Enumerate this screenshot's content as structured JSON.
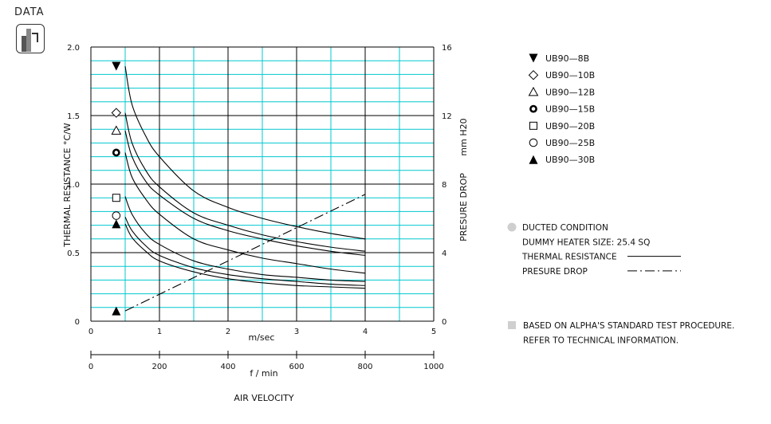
{
  "brand": {
    "label": "DATA",
    "icon": "bar-chart-icon"
  },
  "chart_data": {
    "type": "line",
    "xlabel_top": "m/sec",
    "xlabel_bottom": "f / min",
    "xlabel_main": "AIR VELOCITY",
    "ylabel_left": "THERMAL  RESISTANCE   °C/W",
    "ylabel_right_main": "PRESURE  DROP",
    "ylabel_right_unit": "mm H20",
    "xlim": [
      0,
      5
    ],
    "ylim": [
      0,
      2.0
    ],
    "y2lim": [
      0,
      16
    ],
    "x2lim": [
      0,
      1000
    ],
    "x_ticks": [
      "0",
      "1",
      "2",
      "3",
      "4",
      "5"
    ],
    "x2_ticks": [
      "0",
      "200",
      "400",
      "600",
      "800",
      "1000"
    ],
    "y_ticks": [
      "0",
      "0.5",
      "1.0",
      "1.5",
      "2.0"
    ],
    "y2_ticks": [
      "0",
      "4",
      "8",
      "12",
      "16"
    ],
    "grid": true,
    "series": [
      {
        "name": "UB90—8B",
        "marker": "triangle-down-filled",
        "marker_y": 1.86,
        "x": [
          0.5,
          0.6,
          0.8,
          1.0,
          1.5,
          2.0,
          2.5,
          3.0,
          3.5,
          4.0
        ],
        "y": [
          1.86,
          1.58,
          1.35,
          1.2,
          0.95,
          0.83,
          0.75,
          0.69,
          0.64,
          0.6
        ]
      },
      {
        "name": "UB90—10B",
        "marker": "diamond-open",
        "marker_y": 1.52,
        "x": [
          0.5,
          0.6,
          0.8,
          1.0,
          1.5,
          2.0,
          2.5,
          3.0,
          3.5,
          4.0
        ],
        "y": [
          1.52,
          1.3,
          1.1,
          0.98,
          0.79,
          0.7,
          0.63,
          0.58,
          0.54,
          0.51
        ]
      },
      {
        "name": "UB90—12B",
        "marker": "triangle-up-open",
        "marker_y": 1.39,
        "x": [
          0.5,
          0.6,
          0.8,
          1.0,
          1.5,
          2.0,
          2.5,
          3.0,
          3.5,
          4.0
        ],
        "y": [
          1.39,
          1.2,
          1.02,
          0.92,
          0.75,
          0.66,
          0.6,
          0.55,
          0.51,
          0.48
        ]
      },
      {
        "name": "UB90—15B",
        "marker": "circle-bold",
        "marker_y": 1.23,
        "x": [
          0.5,
          0.6,
          0.8,
          1.0,
          1.5,
          2.0,
          2.5,
          3.0,
          3.5,
          4.0
        ],
        "y": [
          1.23,
          1.05,
          0.89,
          0.78,
          0.6,
          0.52,
          0.46,
          0.42,
          0.38,
          0.35
        ]
      },
      {
        "name": "UB90—20B",
        "marker": "square-open",
        "marker_y": 0.9,
        "x": [
          0.5,
          0.6,
          0.8,
          1.0,
          1.5,
          2.0,
          2.5,
          3.0,
          3.5,
          4.0
        ],
        "y": [
          0.91,
          0.78,
          0.64,
          0.56,
          0.44,
          0.38,
          0.34,
          0.32,
          0.3,
          0.29
        ]
      },
      {
        "name": "UB90—25B",
        "marker": "circle-open",
        "marker_y": 0.77,
        "x": [
          0.5,
          0.6,
          0.8,
          1.0,
          1.5,
          2.0,
          2.5,
          3.0,
          3.5,
          4.0
        ],
        "y": [
          0.76,
          0.66,
          0.55,
          0.48,
          0.39,
          0.34,
          0.31,
          0.29,
          0.27,
          0.26
        ]
      },
      {
        "name": "UB90—30B",
        "marker": "triangle-up-filled",
        "marker_y": 0.71,
        "x": [
          0.5,
          0.6,
          0.8,
          1.0,
          1.5,
          2.0,
          2.5,
          3.0,
          3.5,
          4.0
        ],
        "y": [
          0.71,
          0.61,
          0.51,
          0.44,
          0.36,
          0.31,
          0.28,
          0.26,
          0.25,
          0.24
        ]
      }
    ],
    "pressure_drop": {
      "marker": "triangle-up-filled",
      "marker_y2": 0.6,
      "x": [
        0.5,
        4.0
      ],
      "y2": [
        0.6,
        7.4
      ]
    },
    "conditions": [
      {
        "bullet": "circle-grey",
        "text": "DUCTED CONDITION"
      },
      {
        "bullet": "",
        "text": "DUMMY HEATER SIZE: 25.4 SQ"
      },
      {
        "bullet": "",
        "text": "THERMAL RESISTANCE",
        "line": "solid"
      },
      {
        "bullet": "",
        "text": "PRESURE DROP",
        "line": "dash-dot"
      }
    ],
    "notes": [
      {
        "bullet": "square-grey",
        "text": "BASED ON ALPHA'S STANDARD TEST PROCEDURE."
      },
      {
        "bullet": "",
        "text": "REFER TO TECHNICAL INFORMATION."
      }
    ],
    "colors": {
      "minor_grid": "#00c8cf",
      "major_grid": "#000000",
      "curve": "#000000",
      "bullet_grey": "#cfcfcf"
    }
  }
}
